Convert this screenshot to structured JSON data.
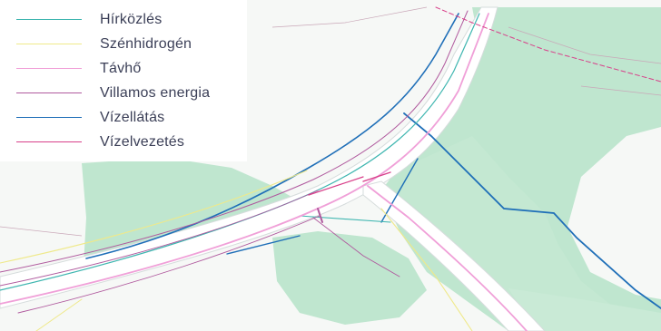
{
  "legend": {
    "items": [
      {
        "label": "Hírközlés",
        "color": "#3fb6b0"
      },
      {
        "label": "Szénhidrogén",
        "color": "#efe98a"
      },
      {
        "label": "Távhő",
        "color": "#f0a0d8"
      },
      {
        "label": "Villamos energia",
        "color": "#b05a9e"
      },
      {
        "label": "Vízellátás",
        "color": "#1f6fb8"
      },
      {
        "label": "Vízelvezetés",
        "color": "#d8408a"
      }
    ]
  },
  "colors": {
    "vegetation": "#bfe6cf",
    "vegetation_dark": "#a9dcc0",
    "road": "#ffffff",
    "background": "#f6f8f6"
  }
}
